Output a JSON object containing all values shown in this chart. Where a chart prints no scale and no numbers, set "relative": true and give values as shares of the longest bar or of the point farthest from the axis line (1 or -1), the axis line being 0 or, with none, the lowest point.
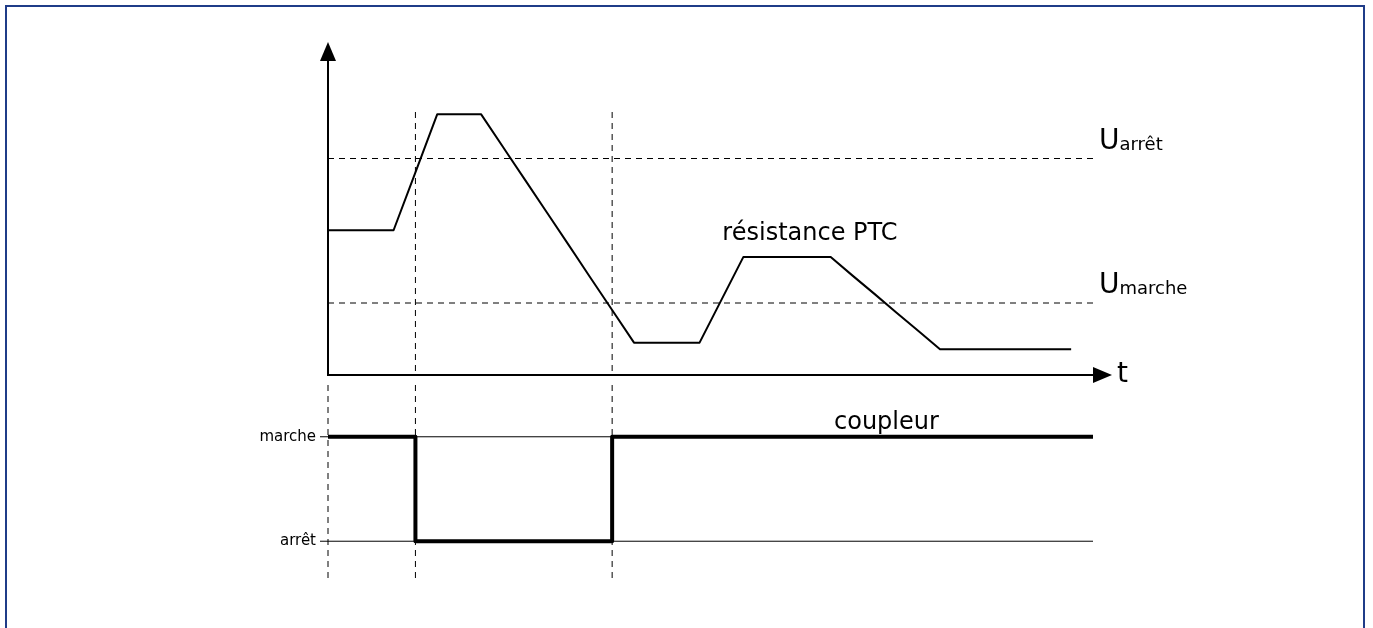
{
  "chart_data": [
    {
      "type": "line",
      "relative": true,
      "xlabel": "t",
      "legend": false,
      "categories": [
        null,
        null,
        null,
        null,
        null,
        null,
        null,
        null,
        null,
        null,
        null,
        null,
        null,
        null,
        null,
        null,
        null,
        null,
        null,
        null,
        null,
        null,
        null,
        null,
        null,
        null,
        null,
        null,
        null,
        null,
        null,
        null,
        null,
        null,
        null
      ],
      "series": [
        {
          "name": "résistance PTC",
          "color": "#000000",
          "values": [
            0.555,
            0.555,
            0.555,
            0.555,
            0.777,
            1,
            1,
            1,
            0.875,
            0.75,
            0.625,
            0.5,
            0.374,
            0.249,
            0.124,
            0.124,
            0.124,
            0.124,
            0.288,
            0.452,
            0.452,
            0.452,
            0.452,
            0.452,
            0.381,
            0.311,
            0.24,
            0.17,
            0.099,
            0.099,
            0.099,
            0.099,
            0.099,
            0.099,
            0.099
          ]
        }
      ],
      "ref_lines": [
        {
          "axis": "y",
          "value": 0.83,
          "label": "U$_{arrêt}$",
          "line_style": "dashed"
        },
        {
          "axis": "y",
          "value": 0.276,
          "label": "U$_{marche}$",
          "line_style": "dashed"
        }
      ]
    },
    {
      "type": "step",
      "relative": true,
      "legend": false,
      "categories": [
        null,
        null,
        null,
        null,
        null,
        null,
        null,
        null,
        null,
        null,
        null,
        null,
        null,
        null,
        null,
        null,
        null,
        null,
        null,
        null,
        null,
        null,
        null,
        null,
        null,
        null,
        null,
        null,
        null,
        null,
        null,
        null,
        null,
        null,
        null,
        null
      ],
      "series": [
        {
          "name": "coupleur",
          "color": "#000000",
          "values": [
            1,
            1,
            1,
            1,
            0,
            0,
            0,
            0,
            0,
            0,
            0,
            0,
            0,
            1,
            1,
            1,
            1,
            1,
            1,
            1,
            1,
            1,
            1,
            1,
            1,
            1,
            1,
            1,
            1,
            1,
            1,
            1,
            1,
            1,
            1,
            1
          ]
        }
      ],
      "grid": true,
      "annotations": [
        "marche",
        "arrêt"
      ]
    }
  ]
}
